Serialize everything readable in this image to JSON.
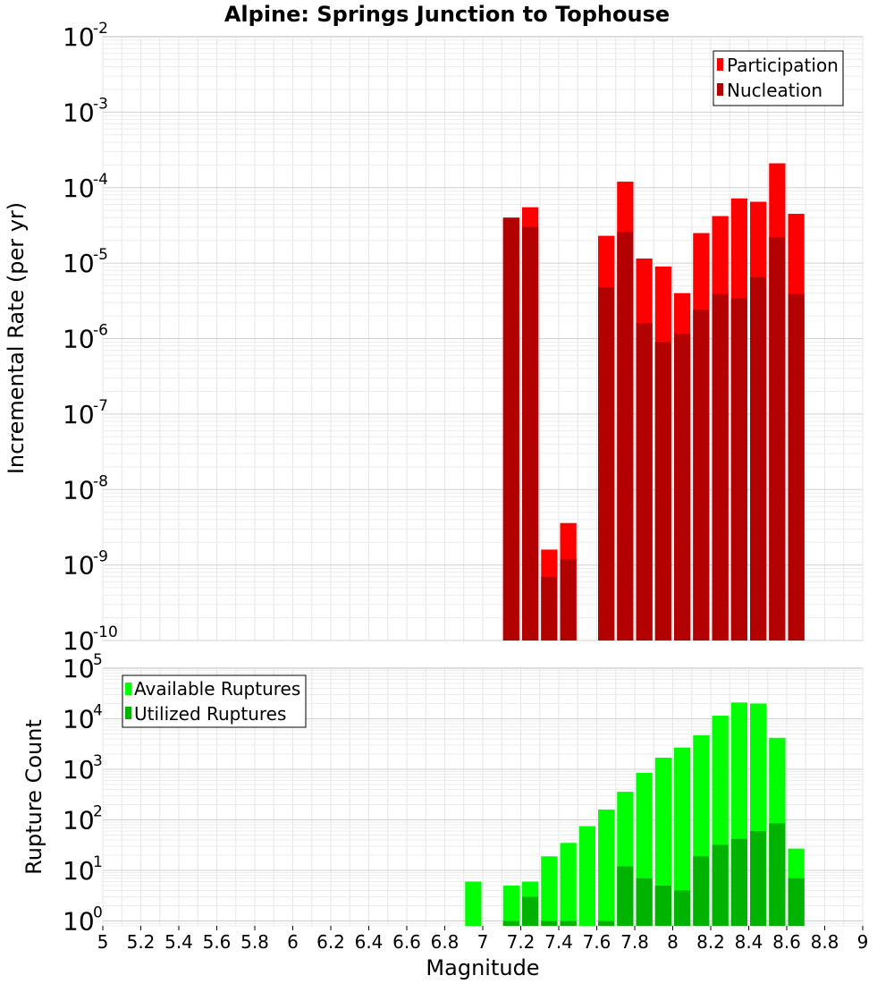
{
  "chart_data": [
    {
      "type": "bar",
      "title": "Alpine: Springs Junction to Tophouse",
      "xlabel": "",
      "ylabel": "Incremental Rate (per yr)",
      "y_scale": "log",
      "ylim": [
        1e-10,
        0.01
      ],
      "xlim": [
        5,
        9
      ],
      "bar_width": 0.1,
      "y_ticks": [
        {
          "base": "10",
          "exp": "-10"
        },
        {
          "base": "10",
          "exp": "-9"
        },
        {
          "base": "10",
          "exp": "-8"
        },
        {
          "base": "10",
          "exp": "-7"
        },
        {
          "base": "10",
          "exp": "-6"
        },
        {
          "base": "10",
          "exp": "-5"
        },
        {
          "base": "10",
          "exp": "-4"
        },
        {
          "base": "10",
          "exp": "-3"
        },
        {
          "base": "10",
          "exp": "-2"
        }
      ],
      "legend_position": "top-right",
      "grid": true,
      "series": [
        {
          "name": "Participation",
          "color": "#ff0000",
          "x": [
            7.15,
            7.25,
            7.35,
            7.45,
            7.65,
            7.75,
            7.85,
            7.95,
            8.05,
            8.15,
            8.25,
            8.35,
            8.45,
            8.55,
            8.65
          ],
          "values": [
            4e-05,
            5.5e-05,
            1.6e-09,
            3.6e-09,
            2.3e-05,
            0.00012,
            1.15e-05,
            9e-06,
            4e-06,
            2.5e-05,
            4.2e-05,
            7.2e-05,
            6.5e-05,
            0.00021,
            4.5e-05
          ]
        },
        {
          "name": "Nucleation",
          "color": "#b30000",
          "x": [
            7.15,
            7.25,
            7.35,
            7.45,
            7.65,
            7.75,
            7.85,
            7.95,
            8.05,
            8.15,
            8.25,
            8.35,
            8.45,
            8.55,
            8.65
          ],
          "values": [
            4e-05,
            3e-05,
            7e-10,
            1.2e-09,
            4.8e-06,
            2.6e-05,
            1.6e-06,
            9e-07,
            1.15e-06,
            2.4e-06,
            3.9e-06,
            3.4e-06,
            6.5e-06,
            2.2e-05,
            3.9e-06
          ]
        }
      ]
    },
    {
      "type": "bar",
      "title": "",
      "xlabel": "Magnitude",
      "ylabel": "Rupture Count",
      "y_scale": "log",
      "ylim": [
        0.8,
        100000.0
      ],
      "xlim": [
        5,
        9
      ],
      "bar_width": 0.1,
      "x_ticks": [
        "5",
        "5.2",
        "5.4",
        "5.6",
        "5.8",
        "6",
        "6.2",
        "6.4",
        "6.6",
        "6.8",
        "7",
        "7.2",
        "7.4",
        "7.6",
        "7.8",
        "8",
        "8.2",
        "8.4",
        "8.6",
        "8.8",
        "9"
      ],
      "y_ticks": [
        {
          "base": "10",
          "exp": "0"
        },
        {
          "base": "10",
          "exp": "1"
        },
        {
          "base": "10",
          "exp": "2"
        },
        {
          "base": "10",
          "exp": "3"
        },
        {
          "base": "10",
          "exp": "4"
        },
        {
          "base": "10",
          "exp": "5"
        }
      ],
      "legend_position": "top-left",
      "grid": true,
      "series": [
        {
          "name": "Available Ruptures",
          "color": "#00ff00",
          "x": [
            6.95,
            7.15,
            7.25,
            7.35,
            7.45,
            7.55,
            7.65,
            7.75,
            7.85,
            7.95,
            8.05,
            8.15,
            8.25,
            8.35,
            8.45,
            8.55,
            8.65
          ],
          "values": [
            6,
            5,
            6,
            19,
            35,
            75,
            160,
            360,
            850,
            1700,
            2700,
            4700,
            11500,
            21000,
            20000,
            4200,
            27
          ]
        },
        {
          "name": "Utilized Ruptures",
          "color": "#00b300",
          "x": [
            7.15,
            7.25,
            7.35,
            7.45,
            7.65,
            7.75,
            7.85,
            7.95,
            8.05,
            8.15,
            8.25,
            8.35,
            8.45,
            8.55,
            8.65
          ],
          "values": [
            1,
            3,
            1,
            1,
            1,
            12,
            7,
            5,
            4,
            19,
            32,
            42,
            60,
            85,
            7
          ]
        }
      ]
    }
  ]
}
